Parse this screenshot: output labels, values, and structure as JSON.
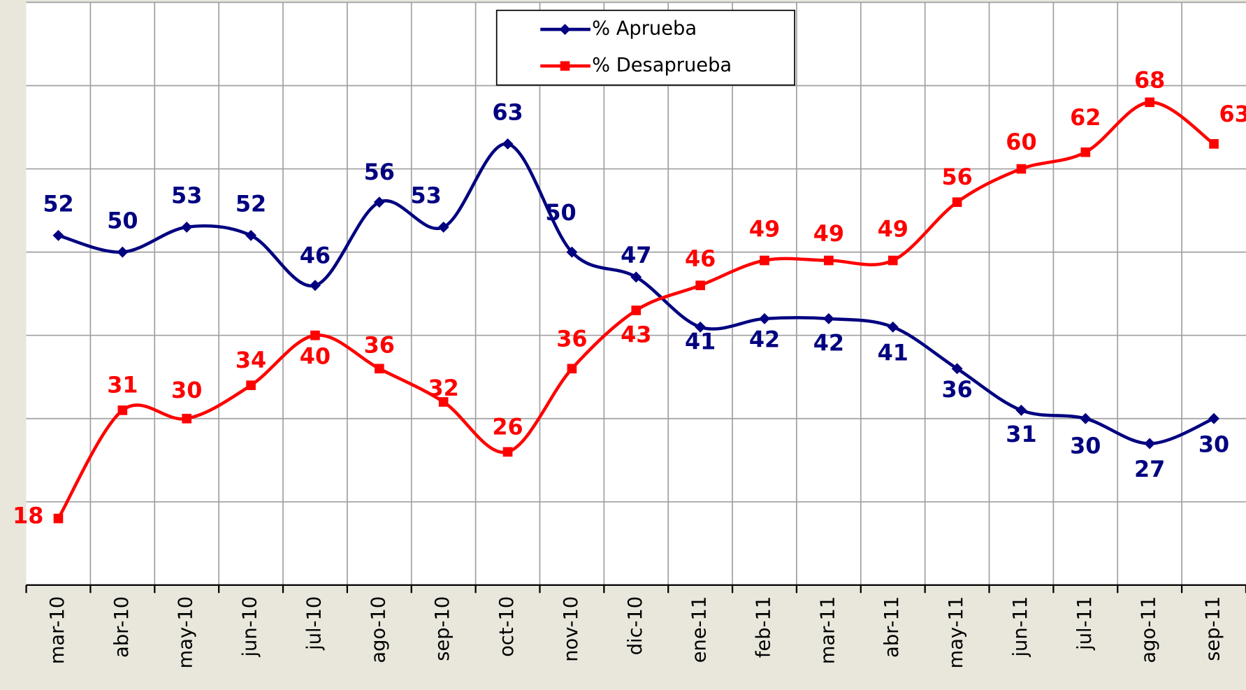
{
  "chart_data": {
    "type": "line",
    "categories": [
      "mar-10",
      "abr-10",
      "may-10",
      "jun-10",
      "jul-10",
      "ago-10",
      "sep-10",
      "oct-10",
      "nov-10",
      "dic-10",
      "ene-11",
      "feb-11",
      "mar-11",
      "abr-11",
      "may-11",
      "jun-11",
      "jul-11",
      "ago-11",
      "sep-11"
    ],
    "series": [
      {
        "name": "% Aprueba",
        "color": "#000080",
        "marker": "diamond",
        "values": [
          52,
          50,
          53,
          52,
          46,
          56,
          53,
          63,
          50,
          47,
          41,
          42,
          42,
          41,
          36,
          31,
          30,
          27,
          30
        ]
      },
      {
        "name": "% Desaprueba",
        "color": "#ff0000",
        "marker": "square",
        "values": [
          18,
          31,
          30,
          34,
          40,
          36,
          32,
          26,
          36,
          43,
          46,
          49,
          49,
          49,
          56,
          60,
          62,
          68,
          63
        ]
      }
    ],
    "ylim": [
      10,
      80
    ],
    "yticks": [
      10,
      20,
      30,
      40,
      50,
      60,
      70,
      80
    ],
    "grid": true,
    "smooth": true,
    "legend": "top"
  }
}
